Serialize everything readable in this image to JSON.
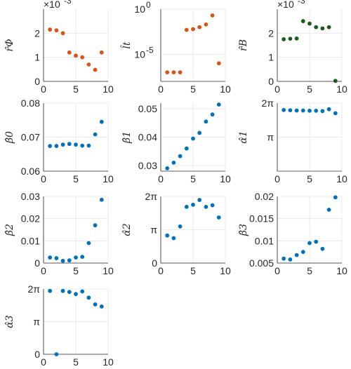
{
  "colors": {
    "orange": "#d95319",
    "green": "#1a5c1a",
    "blue": "#0072bd"
  },
  "chart_data": [
    {
      "type": "scatter",
      "ylabel": "r̂Φ",
      "exponent": "×10-3",
      "x": [
        1,
        2,
        3,
        4,
        5,
        6,
        7,
        8,
        9
      ],
      "y": [
        2.15,
        2.12,
        2.0,
        1.2,
        1.07,
        1.0,
        0.7,
        0.48,
        1.2
      ],
      "ylim": [
        0,
        3
      ],
      "xlim": [
        0,
        10
      ],
      "yticks": [
        {
          "v": 0,
          "label": "0"
        },
        {
          "v": 1,
          "label": "1"
        },
        {
          "v": 2,
          "label": "2"
        }
      ],
      "xticks": [
        {
          "v": 0,
          "label": "0"
        },
        {
          "v": 5,
          "label": "5"
        },
        {
          "v": 10,
          "label": "10"
        }
      ],
      "color": "orange",
      "scale": "linear"
    },
    {
      "type": "scatter",
      "ylabel": "l̂t",
      "exponent": "",
      "x": [
        1,
        2,
        3,
        4,
        5,
        6,
        7,
        8,
        9
      ],
      "y": [
        1e-07,
        1e-07,
        1e-07,
        0.005,
        0.006,
        0.01,
        0.02,
        0.2,
        1e-06
      ],
      "ylim": [
        1e-08,
        1
      ],
      "xlim": [
        0,
        10
      ],
      "yticks": [
        {
          "v": 1,
          "label": "10",
          "sup": "0"
        },
        {
          "v": 1e-05,
          "label": "10",
          "sup": "-5"
        }
      ],
      "xticks": [
        {
          "v": 0,
          "label": "0"
        },
        {
          "v": 5,
          "label": "5"
        },
        {
          "v": 10,
          "label": "10"
        }
      ],
      "color": "orange",
      "scale": "log"
    },
    {
      "type": "scatter",
      "ylabel": "r̂B",
      "exponent": "×10-3",
      "x": [
        1,
        2,
        3,
        4,
        5,
        6,
        7,
        8,
        9
      ],
      "y": [
        1.75,
        1.77,
        1.78,
        2.5,
        2.4,
        2.25,
        2.2,
        2.25,
        0.02
      ],
      "ylim": [
        0,
        3
      ],
      "xlim": [
        0,
        10
      ],
      "yticks": [
        {
          "v": 0,
          "label": "0"
        },
        {
          "v": 1,
          "label": "1"
        },
        {
          "v": 2,
          "label": "2"
        }
      ],
      "xticks": [
        {
          "v": 0,
          "label": "0"
        },
        {
          "v": 5,
          "label": "5"
        },
        {
          "v": 10,
          "label": "10"
        }
      ],
      "color": "green",
      "scale": "linear"
    },
    {
      "type": "scatter",
      "ylabel": "β̂0",
      "exponent": "",
      "x": [
        1,
        2,
        3,
        4,
        5,
        6,
        7,
        8,
        9
      ],
      "y": [
        0.0674,
        0.0674,
        0.0678,
        0.068,
        0.0678,
        0.0675,
        0.0675,
        0.0708,
        0.0745
      ],
      "ylim": [
        0.06,
        0.08
      ],
      "xlim": [
        0,
        10
      ],
      "yticks": [
        {
          "v": 0.06,
          "label": "0.06"
        },
        {
          "v": 0.07,
          "label": "0.07"
        },
        {
          "v": 0.08,
          "label": "0.08"
        }
      ],
      "xticks": [
        {
          "v": 0,
          "label": "0"
        },
        {
          "v": 5,
          "label": "5"
        },
        {
          "v": 10,
          "label": "10"
        }
      ],
      "color": "blue",
      "scale": "linear"
    },
    {
      "type": "scatter",
      "ylabel": "β̂1",
      "exponent": "",
      "x": [
        1,
        2,
        3,
        4,
        5,
        6,
        7,
        8,
        9
      ],
      "y": [
        0.029,
        0.031,
        0.0333,
        0.036,
        0.0395,
        0.0415,
        0.0455,
        0.048,
        0.0515
      ],
      "ylim": [
        0.028,
        0.052
      ],
      "xlim": [
        0,
        10
      ],
      "yticks": [
        {
          "v": 0.03,
          "label": "0.03"
        },
        {
          "v": 0.04,
          "label": "0.04"
        },
        {
          "v": 0.05,
          "label": "0.05"
        }
      ],
      "xticks": [
        {
          "v": 0,
          "label": "0"
        },
        {
          "v": 5,
          "label": "5"
        },
        {
          "v": 10,
          "label": "10"
        }
      ],
      "color": "blue",
      "scale": "linear"
    },
    {
      "type": "scatter",
      "ylabel": "α̂1",
      "exponent": "",
      "x": [
        1,
        2,
        3,
        4,
        5,
        6,
        7,
        8,
        9
      ],
      "y": [
        5.65,
        5.62,
        5.6,
        5.6,
        5.58,
        5.58,
        5.55,
        5.72,
        5.35
      ],
      "ylim": [
        0,
        6.2832
      ],
      "xlim": [
        0,
        10
      ],
      "yticks": [
        {
          "v": 3.1416,
          "label": "π"
        },
        {
          "v": 6.2832,
          "label": "2π"
        }
      ],
      "xticks": [
        {
          "v": 0,
          "label": "0"
        },
        {
          "v": 5,
          "label": "5"
        },
        {
          "v": 10,
          "label": "10"
        }
      ],
      "color": "blue",
      "scale": "linear"
    },
    {
      "type": "scatter",
      "ylabel": "β̂2",
      "exponent": "",
      "x": [
        1,
        2,
        3,
        4,
        5,
        6,
        7,
        8,
        9
      ],
      "y": [
        0.0025,
        0.0022,
        0.001,
        0.0012,
        0.0025,
        0.0028,
        0.009,
        0.017,
        0.0285
      ],
      "ylim": [
        0,
        0.03
      ],
      "xlim": [
        0,
        10
      ],
      "yticks": [
        {
          "v": 0,
          "label": "0"
        },
        {
          "v": 0.01,
          "label": "0.01"
        },
        {
          "v": 0.02,
          "label": "0.02"
        },
        {
          "v": 0.03,
          "label": "0.03"
        }
      ],
      "xticks": [
        {
          "v": 0,
          "label": "0"
        },
        {
          "v": 5,
          "label": "5"
        },
        {
          "v": 10,
          "label": "10"
        }
      ],
      "color": "blue",
      "scale": "linear"
    },
    {
      "type": "scatter",
      "ylabel": "α̂2",
      "exponent": "",
      "x": [
        1,
        2,
        3,
        4,
        5,
        6,
        7,
        8,
        9
      ],
      "y": [
        2.6,
        2.35,
        3.45,
        5.3,
        5.5,
        5.95,
        5.3,
        5.45,
        4.3
      ],
      "ylim": [
        0,
        6.2832
      ],
      "xlim": [
        0,
        10
      ],
      "yticks": [
        {
          "v": 0,
          "label": "0"
        },
        {
          "v": 3.1416,
          "label": "π"
        },
        {
          "v": 6.2832,
          "label": "2π"
        }
      ],
      "xticks": [
        {
          "v": 0,
          "label": "0"
        },
        {
          "v": 5,
          "label": "5"
        },
        {
          "v": 10,
          "label": "10"
        }
      ],
      "color": "blue",
      "scale": "linear"
    },
    {
      "type": "scatter",
      "ylabel": "β̂3",
      "exponent": "",
      "x": [
        1,
        2,
        3,
        4,
        5,
        6,
        7,
        8,
        9
      ],
      "y": [
        0.006,
        0.0058,
        0.0068,
        0.0075,
        0.0095,
        0.0098,
        0.0082,
        0.017,
        0.0198
      ],
      "ylim": [
        0.005,
        0.02
      ],
      "xlim": [
        0,
        10
      ],
      "yticks": [
        {
          "v": 0.005,
          "label": "0.005"
        },
        {
          "v": 0.01,
          "label": "0.01"
        },
        {
          "v": 0.015,
          "label": "0.015"
        },
        {
          "v": 0.02,
          "label": "0.02"
        }
      ],
      "xticks": [
        {
          "v": 0,
          "label": "0"
        },
        {
          "v": 5,
          "label": "5"
        },
        {
          "v": 10,
          "label": "10"
        }
      ],
      "color": "blue",
      "scale": "linear"
    },
    {
      "type": "scatter",
      "ylabel": "α̂3",
      "exponent": "",
      "x": [
        1,
        2,
        3,
        4,
        5,
        6,
        7,
        8,
        9
      ],
      "y": [
        6.1,
        0.0,
        6.1,
        6.0,
        5.8,
        6.05,
        5.45,
        4.8,
        4.6
      ],
      "ylim": [
        0,
        6.2832
      ],
      "xlim": [
        0,
        10
      ],
      "yticks": [
        {
          "v": 0,
          "label": "0"
        },
        {
          "v": 3.1416,
          "label": "π"
        },
        {
          "v": 6.2832,
          "label": "2π"
        }
      ],
      "xticks": [
        {
          "v": 0,
          "label": "0"
        },
        {
          "v": 5,
          "label": "5"
        },
        {
          "v": 10,
          "label": "10"
        }
      ],
      "color": "blue",
      "scale": "linear"
    }
  ]
}
